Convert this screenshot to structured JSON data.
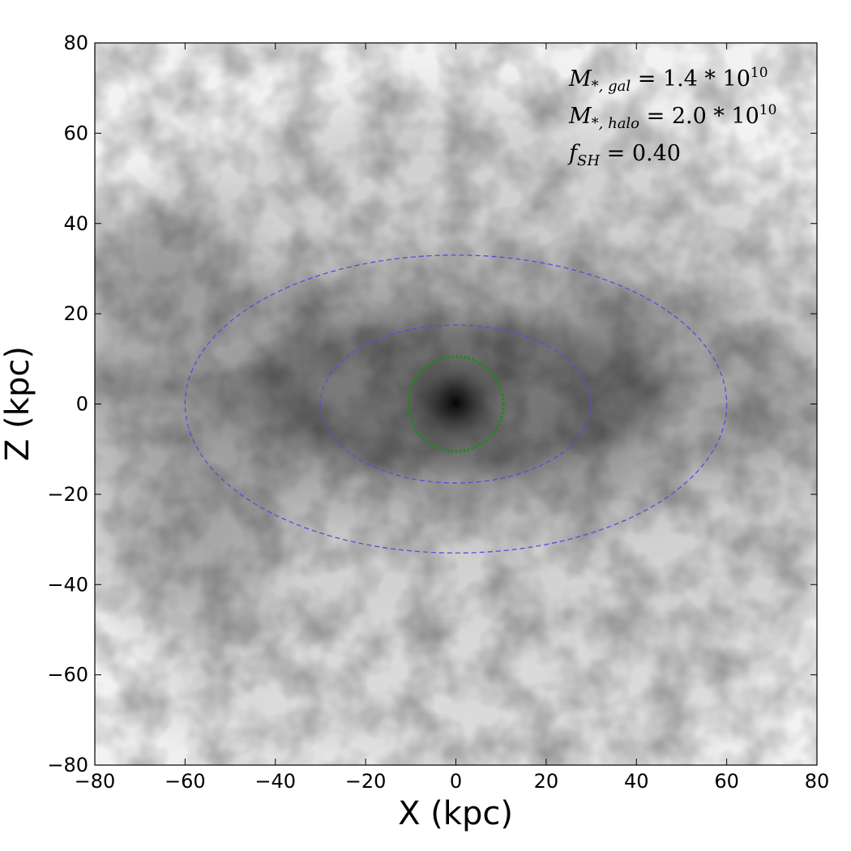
{
  "chart_data": {
    "type": "heatmap",
    "title": "",
    "xlabel": "X (kpc)",
    "ylabel": "Z (kpc)",
    "xlim": [
      -80,
      80
    ],
    "ylim": [
      -80,
      80
    ],
    "x_ticks": [
      -80,
      -60,
      -40,
      -20,
      0,
      20,
      40,
      60,
      80
    ],
    "y_ticks": [
      -80,
      -60,
      -40,
      -20,
      0,
      20,
      40,
      60,
      80
    ],
    "x_tick_labels": [
      "−80",
      "−60",
      "−40",
      "−20",
      "0",
      "20",
      "40",
      "60",
      "80"
    ],
    "y_tick_labels": [
      "−80",
      "−60",
      "−40",
      "−20",
      "0",
      "20",
      "40",
      "60",
      "80"
    ],
    "grid": false,
    "colormap": "greys",
    "annotations": [
      {
        "main": "M",
        "sub": "*, gal",
        "eq": " = 1.4 * 10",
        "sup": "10"
      },
      {
        "main": "M",
        "sub": "*, halo",
        "eq": " = 2.0 * 10",
        "sup": "10"
      },
      {
        "main": "f",
        "sub": "SH",
        "eq": " = 0.40",
        "sup": ""
      }
    ],
    "ellipses": [
      {
        "name": "outer",
        "cx": 0,
        "cy": 0,
        "rx": 60,
        "ry": 33,
        "style": "dashed",
        "color": "#5050e0"
      },
      {
        "name": "inner",
        "cx": 0,
        "cy": 0,
        "rx": 30,
        "ry": 17.5,
        "style": "dashed",
        "color": "#5050e0"
      },
      {
        "name": "core",
        "cx": 0,
        "cy": 0,
        "rx": 10.5,
        "ry": 10.5,
        "style": "dotted",
        "color": "#1a8a1a"
      }
    ]
  }
}
